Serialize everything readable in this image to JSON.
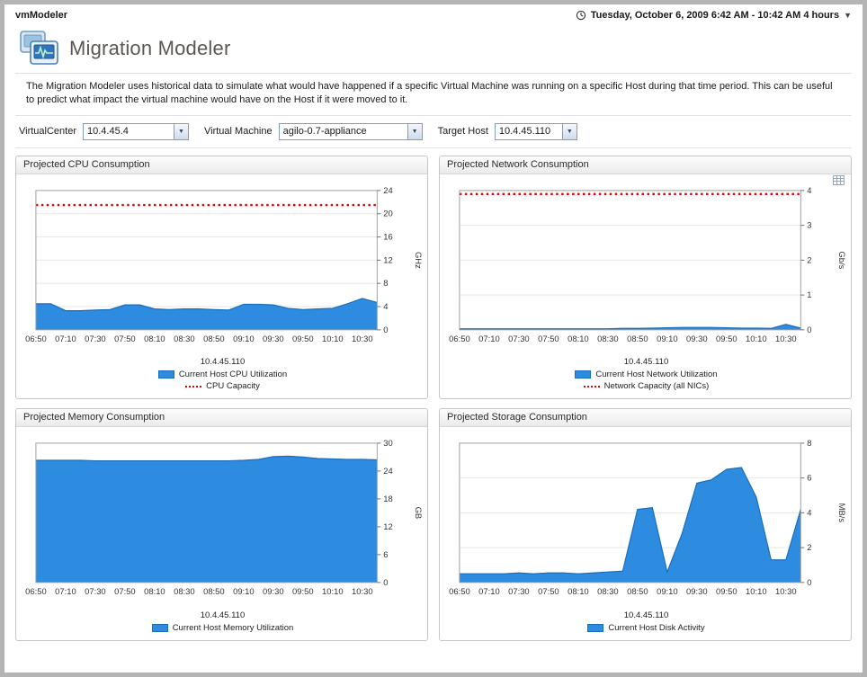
{
  "titlebar": {
    "app_name": "vmModeler",
    "date_range": "Tuesday, October 6, 2009 6:42 AM - 10:42 AM 4 hours"
  },
  "header": {
    "title": "Migration Modeler",
    "description": "The Migration Modeler uses historical data to simulate what would have happened if a specific Virtual Machine was running on a specific Host during that time period. This can be useful to predict what impact the virtual machine would have on the Host if it were moved to it."
  },
  "controls": {
    "fields": [
      {
        "label": "VirtualCenter",
        "value": "10.4.45.4"
      },
      {
        "label": "Virtual Machine",
        "value": "agilo-0.7-appliance"
      },
      {
        "label": "Target Host",
        "value": "10.4.45.110"
      }
    ]
  },
  "colors": {
    "area_fill": "#2e8ce0",
    "area_edge": "#1a6dbb",
    "capacity_red": "#e60000"
  },
  "chart_data": [
    {
      "title": "Projected CPU Consumption",
      "type": "area",
      "ylabel": "GHz",
      "ylim": [
        0,
        24
      ],
      "yticks": [
        0,
        4,
        8,
        12,
        16,
        20,
        24
      ],
      "x_labels": [
        "06:50",
        "07:10",
        "07:30",
        "07:50",
        "08:10",
        "08:30",
        "08:50",
        "09:10",
        "09:30",
        "09:50",
        "10:10",
        "10:30"
      ],
      "group_label": "10.4.45.110",
      "menu_icon": false,
      "series": [
        {
          "kind": "area",
          "name": "Current Host CPU Utilization",
          "color": "#2e8ce0",
          "edge": "#1a6dbb",
          "values": [
            4.5,
            4.5,
            3.3,
            3.3,
            3.4,
            3.5,
            4.3,
            4.3,
            3.6,
            3.5,
            3.6,
            3.6,
            3.5,
            3.4,
            4.4,
            4.4,
            4.3,
            3.7,
            3.5,
            3.6,
            3.7,
            4.5,
            5.4,
            4.7
          ]
        },
        {
          "kind": "capacity",
          "name": "CPU Capacity",
          "color": "#e60000",
          "constant": 21.5
        }
      ]
    },
    {
      "title": "Projected Network Consumption",
      "type": "area",
      "ylabel": "Gb/s",
      "ylim": [
        0,
        4
      ],
      "yticks": [
        0,
        1,
        2,
        3,
        4
      ],
      "x_labels": [
        "06:50",
        "07:10",
        "07:30",
        "07:50",
        "08:10",
        "08:30",
        "08:50",
        "09:10",
        "09:30",
        "09:50",
        "10:10",
        "10:30"
      ],
      "group_label": "10.4.45.110",
      "menu_icon": true,
      "series": [
        {
          "kind": "area",
          "name": "Current Host Network Utilization",
          "color": "#2e8ce0",
          "edge": "#1a6dbb",
          "values": [
            0.03,
            0.03,
            0.03,
            0.03,
            0.03,
            0.03,
            0.03,
            0.03,
            0.03,
            0.03,
            0.03,
            0.04,
            0.04,
            0.05,
            0.06,
            0.07,
            0.07,
            0.07,
            0.06,
            0.05,
            0.05,
            0.04,
            0.16,
            0.05
          ]
        },
        {
          "kind": "capacity",
          "name": "Network Capacity (all NICs)",
          "color": "#e60000",
          "constant": 3.9
        }
      ]
    },
    {
      "title": "Projected Memory Consumption",
      "type": "area",
      "ylabel": "GB",
      "ylim": [
        0,
        30
      ],
      "yticks": [
        0,
        6,
        12,
        18,
        24,
        30
      ],
      "x_labels": [
        "06:50",
        "07:10",
        "07:30",
        "07:50",
        "08:10",
        "08:30",
        "08:50",
        "09:10",
        "09:30",
        "09:50",
        "10:10",
        "10:30"
      ],
      "group_label": "10.4.45.110",
      "menu_icon": false,
      "series": [
        {
          "kind": "area",
          "name": "Current Host Memory Utilization",
          "color": "#2e8ce0",
          "edge": "#1a6dbb",
          "values": [
            26.3,
            26.3,
            26.3,
            26.3,
            26.2,
            26.2,
            26.2,
            26.2,
            26.2,
            26.2,
            26.2,
            26.2,
            26.2,
            26.2,
            26.3,
            26.5,
            27.1,
            27.2,
            27.0,
            26.7,
            26.6,
            26.5,
            26.5,
            26.4
          ]
        }
      ]
    },
    {
      "title": "Projected Storage Consumption",
      "type": "area",
      "ylabel": "MB/s",
      "ylim": [
        0,
        8
      ],
      "yticks": [
        0,
        2,
        4,
        6,
        8
      ],
      "x_labels": [
        "06:50",
        "07:10",
        "07:30",
        "07:50",
        "08:10",
        "08:30",
        "08:50",
        "09:10",
        "09:30",
        "09:50",
        "10:10",
        "10:30"
      ],
      "group_label": "10.4.45.110",
      "menu_icon": false,
      "series": [
        {
          "kind": "area",
          "name": "Current Host Disk Activity",
          "color": "#2e8ce0",
          "edge": "#1a6dbb",
          "values": [
            0.5,
            0.5,
            0.5,
            0.5,
            0.55,
            0.5,
            0.55,
            0.55,
            0.5,
            0.55,
            0.6,
            0.65,
            4.2,
            4.3,
            0.6,
            2.8,
            5.7,
            5.9,
            6.5,
            6.6,
            4.9,
            1.3,
            1.3,
            4.2
          ]
        }
      ]
    }
  ]
}
